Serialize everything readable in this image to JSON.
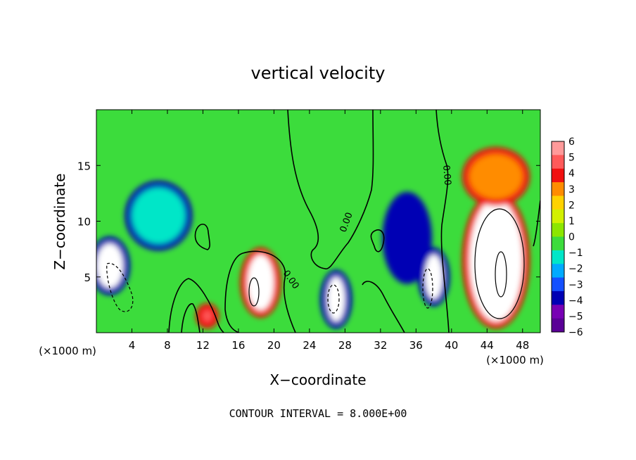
{
  "chart_data": {
    "type": "heatmap",
    "title": "vertical velocity",
    "xlabel": "X−coordinate",
    "ylabel": "Z−coordinate",
    "x_unit_left": "(×1000 m)",
    "x_unit_right": "(×1000 m)",
    "footer": "CONTOUR INTERVAL = 8.000E+00",
    "xlim": [
      0,
      50
    ],
    "ylim": [
      0,
      20
    ],
    "xticks": [
      4,
      8,
      12,
      16,
      20,
      24,
      28,
      32,
      36,
      40,
      44,
      48
    ],
    "xtick_labels": [
      "4",
      "8",
      "12",
      "16",
      "20",
      "24",
      "28",
      "32",
      "36",
      "40",
      "44",
      "48"
    ],
    "yticks": [
      5,
      10,
      15
    ],
    "ytick_labels": [
      "5",
      "10",
      "15"
    ],
    "contour_labels": [
      "0.00",
      "0.00",
      "0.00"
    ],
    "colorbar": {
      "levels": [
        6,
        5,
        4,
        3,
        2,
        1,
        0,
        -1,
        -2,
        -3,
        -4,
        -5,
        -6
      ],
      "labels": [
        "6",
        "5",
        "4",
        "3",
        "2",
        "1",
        "0",
        "−1",
        "−2",
        "−3",
        "−4",
        "−5",
        "−6"
      ],
      "colors": [
        "#ff9a9a",
        "#ff5a5a",
        "#f01010",
        "#ff8c00",
        "#ffd200",
        "#d2f000",
        "#8ce600",
        "#3cdc3c",
        "#00e6c8",
        "#00aaff",
        "#1450ff",
        "#0000b4",
        "#7800b4",
        "#5a0096"
      ]
    },
    "cells": [
      {
        "x": [
          0,
          3
        ],
        "z": [
          4,
          8
        ],
        "w": -6
      },
      {
        "x": [
          4,
          10
        ],
        "z": [
          8,
          13
        ],
        "w": -2
      },
      {
        "x": [
          26,
          28
        ],
        "z": [
          1,
          5
        ],
        "w": -6
      },
      {
        "x": [
          33,
          37
        ],
        "z": [
          5,
          12
        ],
        "w": -5
      },
      {
        "x": [
          37,
          39
        ],
        "z": [
          3,
          7
        ],
        "w": -6
      },
      {
        "x": [
          17,
          20
        ],
        "z": [
          2,
          7
        ],
        "w": 6
      },
      {
        "x": [
          12,
          13
        ],
        "z": [
          1,
          2
        ],
        "w": 5
      },
      {
        "x": [
          42,
          48
        ],
        "z": [
          1,
          12
        ],
        "w": 6
      },
      {
        "x": [
          42,
          48
        ],
        "z": [
          12,
          16
        ],
        "w": 3
      }
    ]
  }
}
